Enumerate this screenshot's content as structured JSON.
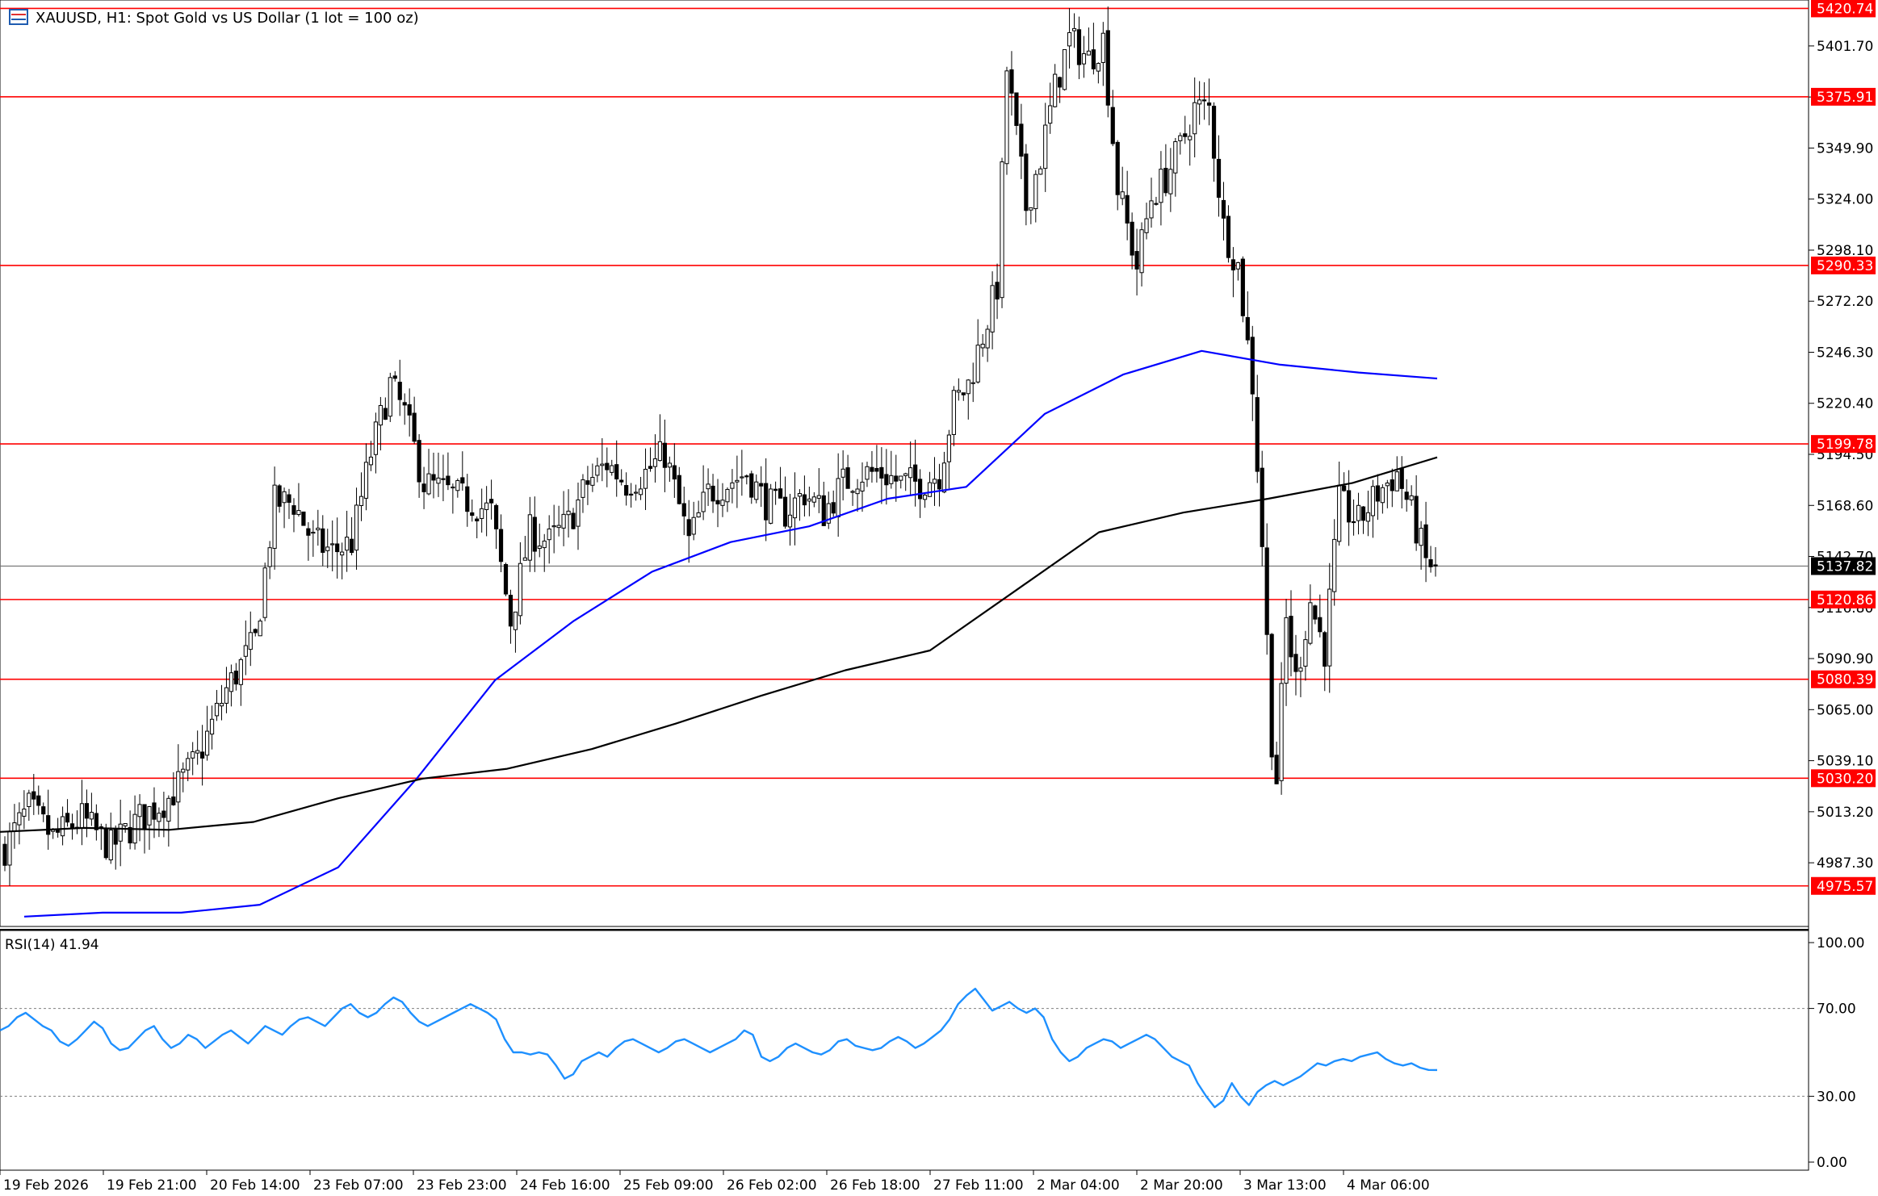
{
  "header": {
    "symbol_title": "XAUUSD, H1:  Spot Gold vs US Dollar (1 lot = 100 oz)"
  },
  "rsi_panel": {
    "label": "RSI(14) 41.94"
  },
  "colors": {
    "candle_bull": "#ffffff",
    "candle_bear": "#000000",
    "ma_fast": "#0000ff",
    "ma_slow": "#000000",
    "level_line": "#ff0000",
    "level_tag_bg": "#ff0000",
    "current_price_tag_bg": "#000000",
    "rsi_line": "#1e90ff",
    "grid_dotted": "#808080"
  },
  "chart_data": [
    {
      "type": "candlestick",
      "title": "XAUUSD, H1:  Spot Gold vs US Dollar (1 lot = 100 oz)",
      "timeframe": "H1",
      "ylim": [
        4955,
        5425
      ],
      "y_ticks": [
        5401.7,
        5375.8,
        5349.9,
        5324.0,
        5298.1,
        5272.2,
        5246.3,
        5220.4,
        5194.5,
        5168.6,
        5142.7,
        5116.8,
        5090.9,
        5065.0,
        5039.1,
        5013.2,
        4987.3
      ],
      "x_ticks": [
        "19 Feb 2026",
        "19 Feb 21:00",
        "20 Feb 14:00",
        "23 Feb 07:00",
        "23 Feb 23:00",
        "24 Feb 16:00",
        "25 Feb 09:00",
        "26 Feb 02:00",
        "26 Feb 18:00",
        "27 Feb 11:00",
        "2 Mar 04:00",
        "2 Mar 20:00",
        "3 Mar 13:00",
        "4 Mar 06:00"
      ],
      "horizontal_levels": [
        5420.74,
        5375.91,
        5290.33,
        5199.78,
        5120.86,
        5080.39,
        5030.2,
        4975.57
      ],
      "current_price": 5137.82,
      "anchors": [
        {
          "i": 0,
          "p": 4995
        },
        {
          "i": 5,
          "p": 5015
        },
        {
          "i": 10,
          "p": 5000
        },
        {
          "i": 16,
          "p": 5010
        },
        {
          "i": 22,
          "p": 4995
        },
        {
          "i": 28,
          "p": 5010
        },
        {
          "i": 34,
          "p": 5020
        },
        {
          "i": 40,
          "p": 5040
        },
        {
          "i": 46,
          "p": 5075
        },
        {
          "i": 52,
          "p": 5100
        },
        {
          "i": 56,
          "p": 5170
        },
        {
          "i": 60,
          "p": 5170
        },
        {
          "i": 64,
          "p": 5150
        },
        {
          "i": 68,
          "p": 5145
        },
        {
          "i": 72,
          "p": 5150
        },
        {
          "i": 76,
          "p": 5195
        },
        {
          "i": 80,
          "p": 5230
        },
        {
          "i": 83,
          "p": 5215
        },
        {
          "i": 87,
          "p": 5180
        },
        {
          "i": 92,
          "p": 5175
        },
        {
          "i": 97,
          "p": 5170
        },
        {
          "i": 101,
          "p": 5165
        },
        {
          "i": 105,
          "p": 5110
        },
        {
          "i": 109,
          "p": 5155
        },
        {
          "i": 113,
          "p": 5150
        },
        {
          "i": 117,
          "p": 5160
        },
        {
          "i": 121,
          "p": 5180
        },
        {
          "i": 125,
          "p": 5190
        },
        {
          "i": 129,
          "p": 5180
        },
        {
          "i": 133,
          "p": 5185
        },
        {
          "i": 137,
          "p": 5195
        },
        {
          "i": 142,
          "p": 5150
        },
        {
          "i": 146,
          "p": 5175
        },
        {
          "i": 150,
          "p": 5180
        },
        {
          "i": 154,
          "p": 5185
        },
        {
          "i": 158,
          "p": 5170
        },
        {
          "i": 162,
          "p": 5165
        },
        {
          "i": 166,
          "p": 5175
        },
        {
          "i": 170,
          "p": 5165
        },
        {
          "i": 174,
          "p": 5180
        },
        {
          "i": 178,
          "p": 5185
        },
        {
          "i": 182,
          "p": 5185
        },
        {
          "i": 186,
          "p": 5180
        },
        {
          "i": 190,
          "p": 5180
        },
        {
          "i": 194,
          "p": 5185
        },
        {
          "i": 197,
          "p": 5220
        },
        {
          "i": 200,
          "p": 5230
        },
        {
          "i": 203,
          "p": 5255
        },
        {
          "i": 206,
          "p": 5280
        },
        {
          "i": 208,
          "p": 5390
        },
        {
          "i": 212,
          "p": 5320
        },
        {
          "i": 215,
          "p": 5345
        },
        {
          "i": 218,
          "p": 5380
        },
        {
          "i": 221,
          "p": 5405
        },
        {
          "i": 225,
          "p": 5395
        },
        {
          "i": 228,
          "p": 5405
        },
        {
          "i": 231,
          "p": 5330
        },
        {
          "i": 235,
          "p": 5290
        },
        {
          "i": 238,
          "p": 5325
        },
        {
          "i": 241,
          "p": 5335
        },
        {
          "i": 244,
          "p": 5350
        },
        {
          "i": 247,
          "p": 5370
        },
        {
          "i": 250,
          "p": 5370
        },
        {
          "i": 253,
          "p": 5310
        },
        {
          "i": 256,
          "p": 5290
        },
        {
          "i": 259,
          "p": 5230
        },
        {
          "i": 261,
          "p": 5150
        },
        {
          "i": 263,
          "p": 5050
        },
        {
          "i": 264,
          "p": 5030
        },
        {
          "i": 266,
          "p": 5110
        },
        {
          "i": 268,
          "p": 5080
        },
        {
          "i": 271,
          "p": 5120
        },
        {
          "i": 274,
          "p": 5095
        },
        {
          "i": 277,
          "p": 5170
        },
        {
          "i": 281,
          "p": 5160
        },
        {
          "i": 285,
          "p": 5175
        },
        {
          "i": 289,
          "p": 5185
        },
        {
          "i": 292,
          "p": 5165
        },
        {
          "i": 295,
          "p": 5140
        },
        {
          "i": 297,
          "p": 5137.82
        }
      ],
      "series": [
        {
          "name": "MA fast",
          "values": [
            4960,
            4962,
            4962,
            4966,
            4985,
            5030,
            5080,
            5110,
            5135,
            5150,
            5158,
            5172,
            5178,
            5215,
            5235,
            5247,
            5240,
            5236,
            5233
          ]
        },
        {
          "name": "MA slow",
          "values": [
            5003,
            5005,
            5004,
            5008,
            5020,
            5030,
            5035,
            5045,
            5058,
            5072,
            5085,
            5095,
            5125,
            5155,
            5165,
            5172,
            5180,
            5193
          ]
        }
      ]
    },
    {
      "type": "line",
      "title": "RSI(14) 41.94",
      "ylim": [
        0,
        100
      ],
      "y_ticks": [
        100.0,
        70.0,
        30.0,
        0.0
      ],
      "reference_levels": [
        70,
        30
      ],
      "series": [
        {
          "name": "RSI(14)",
          "values": [
            60,
            62,
            66,
            68,
            65,
            62,
            60,
            55,
            53,
            56,
            60,
            64,
            61,
            54,
            51,
            52,
            56,
            60,
            62,
            56,
            52,
            54,
            58,
            56,
            52,
            55,
            58,
            60,
            57,
            54,
            58,
            62,
            60,
            58,
            62,
            65,
            66,
            64,
            62,
            66,
            70,
            72,
            68,
            66,
            68,
            72,
            75,
            73,
            68,
            64,
            62,
            64,
            66,
            68,
            70,
            72,
            70,
            68,
            65,
            56,
            50,
            50,
            49,
            50,
            49,
            44,
            38,
            40,
            46,
            48,
            50,
            48,
            52,
            55,
            56,
            54,
            52,
            50,
            52,
            55,
            56,
            54,
            52,
            50,
            52,
            54,
            56,
            60,
            58,
            48,
            46,
            48,
            52,
            54,
            52,
            50,
            49,
            51,
            55,
            56,
            53,
            52,
            51,
            52,
            55,
            57,
            55,
            52,
            54,
            57,
            60,
            65,
            72,
            76,
            79,
            74,
            69,
            71,
            73,
            70,
            68,
            70,
            66,
            56,
            50,
            46,
            48,
            52,
            54,
            56,
            55,
            52,
            54,
            56,
            58,
            56,
            52,
            48,
            46,
            44,
            36,
            30,
            25,
            28,
            36,
            30,
            26,
            32,
            35,
            37,
            35,
            37,
            39,
            42,
            45,
            44,
            46,
            47,
            46,
            48,
            49,
            50,
            47,
            45,
            44,
            45,
            43,
            42,
            41.94
          ]
        }
      ]
    }
  ]
}
